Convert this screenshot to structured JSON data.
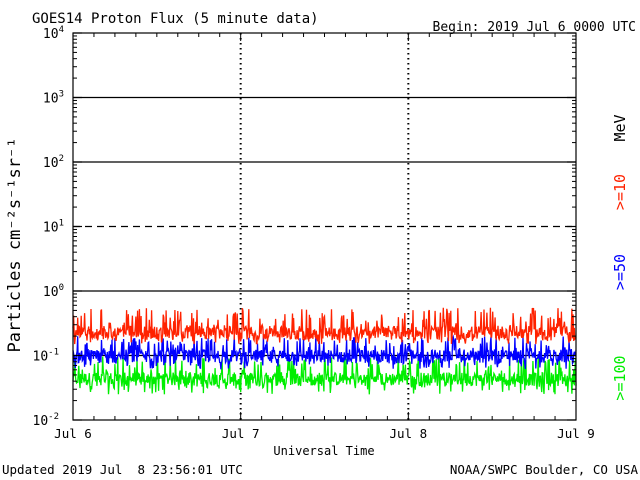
{
  "header": {
    "title": "GOES14 Proton Flux (5 minute data)",
    "begin": "Begin: 2019 Jul 6 0000 UTC"
  },
  "footer": {
    "updated": "Updated 2019 Jul  8 23:56:01 UTC",
    "source": "NOAA/SWPC Boulder, CO USA"
  },
  "chart_data": {
    "type": "line",
    "title": "GOES14 Proton Flux (5 minute data)",
    "xlabel": "Universal Time",
    "ylabel": "Particles cm⁻²s⁻¹sr⁻¹",
    "y_scale": "log",
    "ylim": [
      0.01,
      10000
    ],
    "x_range_days": [
      0,
      3
    ],
    "x_ticks": [
      {
        "day": 0,
        "label": "Jul 6"
      },
      {
        "day": 1,
        "label": "Jul 7"
      },
      {
        "day": 2,
        "label": "Jul 8"
      },
      {
        "day": 3,
        "label": "Jul 9"
      }
    ],
    "y_ticks": [
      {
        "value": 0.01,
        "base": "10",
        "exp": "-2"
      },
      {
        "value": 0.1,
        "base": "10",
        "exp": "-1"
      },
      {
        "value": 1,
        "base": "10",
        "exp": "0"
      },
      {
        "value": 10,
        "base": "10",
        "exp": "1"
      },
      {
        "value": 100,
        "base": "10",
        "exp": "2"
      },
      {
        "value": 1000,
        "base": "10",
        "exp": "3"
      },
      {
        "value": 10000,
        "base": "10",
        "exp": "4"
      }
    ],
    "threshold_lines": [
      {
        "value": 1000,
        "style": "solid"
      },
      {
        "value": 100,
        "style": "solid"
      },
      {
        "value": 10,
        "style": "dashed"
      },
      {
        "value": 1,
        "style": "solid"
      },
      {
        "value": 0.1,
        "style": "solid"
      }
    ],
    "grid": true,
    "series": [
      {
        "name": ">=10 MeV",
        "color": "#ff2200",
        "baseline": 0.22,
        "low": 0.15,
        "high": 0.55
      },
      {
        "name": ">=50",
        "color": "#0000ff",
        "baseline": 0.095,
        "low": 0.06,
        "high": 0.2
      },
      {
        "name": ">=100",
        "color": "#00ee00",
        "baseline": 0.042,
        "low": 0.025,
        "high": 0.1
      }
    ],
    "legend": [
      {
        "text": "MeV",
        "color": "#000000"
      },
      {
        "text": ">=10",
        "color": "#ff2200"
      },
      {
        "text": ">=50",
        "color": "#0000ff"
      },
      {
        "text": ">=100",
        "color": "#00ee00"
      }
    ]
  }
}
